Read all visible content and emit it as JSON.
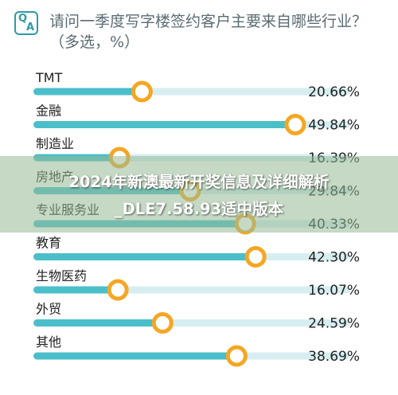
{
  "header": {
    "icon_q": "Q",
    "icon_a": "A",
    "title": "请问一季度写字楼签约客户主要来自哪些行业？（多选，%）"
  },
  "watermark": {
    "line1": "2024年新澳最新开奖信息及详细解析",
    "line2": "_DLE7.58.93适中版本"
  },
  "colors": {
    "bar_fill": "#4bbfc9",
    "track": "#d7eef1",
    "marker_ring": "#f5a623",
    "marker_center": "#ffffff",
    "label_text": "#222222",
    "title_text": "#5a6c74"
  },
  "chart_data": {
    "type": "bar",
    "orientation": "horizontal",
    "title": "请问一季度写字楼签约客户主要来自哪些行业？（多选，%）",
    "xlabel": "",
    "ylabel": "",
    "xlim": [
      0,
      65
    ],
    "grid": false,
    "categories": [
      "TMT",
      "金融",
      "制造业",
      "房地产",
      "专业服务业",
      "教育",
      "生物医药",
      "外贸",
      "其他"
    ],
    "values": [
      20.66,
      49.84,
      16.39,
      29.84,
      40.33,
      42.3,
      16.07,
      24.59,
      38.69
    ],
    "value_labels": [
      "20.66%",
      "49.84%",
      "16.39%",
      "29.84%",
      "40.33%",
      "42.30%",
      "16.07%",
      "24.59%",
      "38.69%"
    ]
  }
}
